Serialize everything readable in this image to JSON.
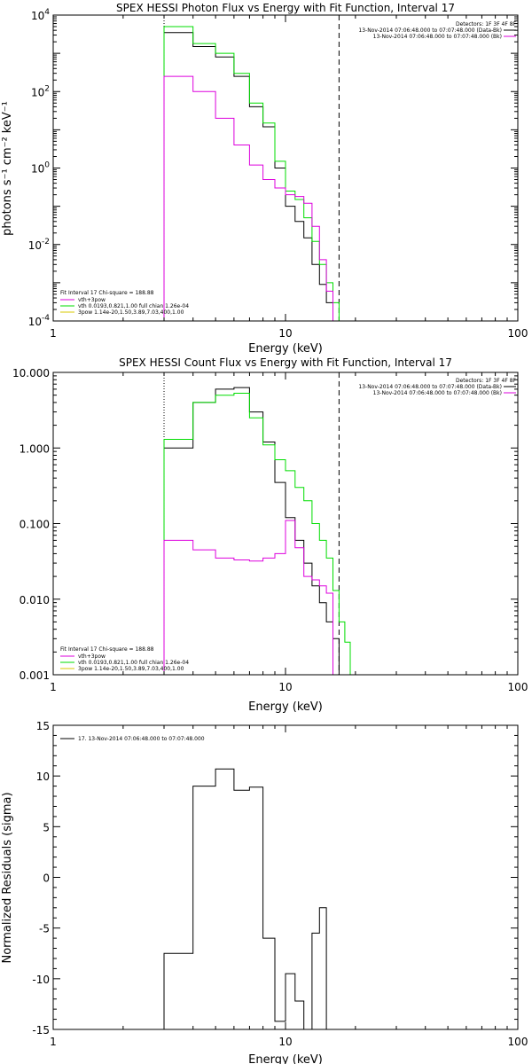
{
  "colors": {
    "data": "#000000",
    "total": "#00dd00",
    "thermal": "#dd00dd",
    "power": "#d8c800"
  },
  "chart_data": [
    {
      "type": "line",
      "title": "SPEX HESSI Photon Flux vs Energy with Fit Function, Interval 17",
      "xlabel": "Energy (keV)",
      "ylabel": "photons s⁻¹ cm⁻² keV⁻¹",
      "xscale": "log",
      "yscale": "log",
      "xlim": [
        1,
        100
      ],
      "ylim": [
        0.0001,
        10000
      ],
      "xticklabels": [
        "1",
        "10",
        "100"
      ],
      "yticklabels": [
        {
          "v": 10000,
          "base": "10",
          "exp": "4"
        },
        {
          "v": 100,
          "base": "10",
          "exp": "2"
        },
        {
          "v": 1,
          "base": "10",
          "exp": "0"
        },
        {
          "v": 0.01,
          "base": "10",
          "exp": "-2"
        },
        {
          "v": 0.0001,
          "base": "10",
          "exp": "-4"
        }
      ],
      "vlines": [
        {
          "x": 3,
          "style": "dotted"
        },
        {
          "x": 17,
          "style": "dashed"
        }
      ],
      "edges": [
        3,
        4,
        5,
        6,
        7,
        8,
        9,
        10,
        11,
        12,
        13,
        14,
        15,
        16,
        17,
        18
      ],
      "series": [
        {
          "color_key": "data",
          "values": [
            3500,
            1500,
            800,
            250,
            40,
            12,
            1,
            0.1,
            0.04,
            0.015,
            0.003,
            0.0009,
            0.0003,
            0.0001
          ]
        },
        {
          "color_key": "total",
          "values": [
            5000,
            1800,
            1000,
            300,
            50,
            15,
            1.5,
            0.25,
            0.15,
            0.05,
            0.012,
            0.003,
            0.001,
            0.0003,
            0.0001
          ]
        },
        {
          "color_key": "thermal",
          "values": [
            250,
            100,
            20,
            4,
            1.2,
            0.5,
            0.3,
            0.2,
            0.18,
            0.12,
            0.03,
            0.004,
            0.0006
          ]
        }
      ],
      "legend_header": "Detectors: 1F 3F 4F 8F",
      "legend": [
        {
          "label": "13-Nov-2014 07:06:48.000 to 07:07:48.000 (Data-Bk)",
          "color_key": "data"
        },
        {
          "label": "13-Nov-2014 07:06:48.000 to 07:07:48.000 (Bk)",
          "color_key": "thermal"
        }
      ],
      "fit_header": "Fit Interval 17    Chi-square = 188.88",
      "fit_legend": [
        {
          "label": "vth+3pow",
          "color_key": "thermal"
        },
        {
          "label": "vth 0.0193,0.821,1.00  full chian 1.26e-04",
          "color_key": "total"
        },
        {
          "label": "3pow 1.14e-20,1.50,3.89,7.03,400,1.00",
          "color_key": "power"
        }
      ]
    },
    {
      "type": "line",
      "title": "SPEX HESSI Count Flux vs Energy with Fit Function, Interval 17",
      "xlabel": "Energy (keV)",
      "ylabel": "",
      "xscale": "log",
      "yscale": "log",
      "xlim": [
        1,
        100
      ],
      "ylim": [
        0.001,
        10
      ],
      "xticklabels": [
        "1",
        "10",
        "100"
      ],
      "yticklabels": [
        {
          "v": 10,
          "text": "10.000"
        },
        {
          "v": 1,
          "text": "1.000"
        },
        {
          "v": 0.1,
          "text": "0.100"
        },
        {
          "v": 0.01,
          "text": "0.010"
        },
        {
          "v": 0.001,
          "text": "0.001"
        }
      ],
      "vlines": [
        {
          "x": 3,
          "style": "dotted"
        },
        {
          "x": 17,
          "style": "dashed"
        }
      ],
      "edges": [
        3,
        4,
        5,
        6,
        7,
        8,
        9,
        10,
        11,
        12,
        13,
        14,
        15,
        16,
        17,
        18,
        19,
        20
      ],
      "series": [
        {
          "color_key": "data",
          "values": [
            1,
            4,
            6,
            6.3,
            3,
            1.2,
            0.35,
            0.12,
            0.06,
            0.03,
            0.015,
            0.009,
            0.005,
            0.003
          ]
        },
        {
          "color_key": "total",
          "values": [
            1.3,
            4,
            5,
            5.3,
            2.5,
            1.1,
            0.7,
            0.5,
            0.3,
            0.2,
            0.1,
            0.06,
            0.035,
            0.013,
            0.005,
            0.0027,
            0.001
          ]
        },
        {
          "color_key": "thermal",
          "values": [
            0.06,
            0.045,
            0.035,
            0.033,
            0.032,
            0.035,
            0.04,
            0.11,
            0.048,
            0.02,
            0.018,
            0.015,
            0.012,
            0.001
          ]
        }
      ],
      "legend_header": "Detectors: 1F 3F 4F 8F",
      "legend": [
        {
          "label": "13-Nov-2014 07:06:48.000 to 07:07:48.000 (Data-Bk)",
          "color_key": "data"
        },
        {
          "label": "13-Nov-2014 07:06:48.000 to 07:07:48.000 (Bk)",
          "color_key": "thermal"
        }
      ],
      "fit_header": "Fit Interval 17    Chi-square = 188.88",
      "fit_legend": [
        {
          "label": "vth+3pow",
          "color_key": "thermal"
        },
        {
          "label": "vth 0.0193,0.821,1.00  full chian 1.26e-04",
          "color_key": "total"
        },
        {
          "label": "3pow 1.14e-20,1.50,3.89,7.03,400,1.00",
          "color_key": "power"
        }
      ]
    },
    {
      "type": "line",
      "title": "",
      "xlabel": "Energy (keV)",
      "ylabel": "Normalized Residuals (sigma)",
      "xscale": "log",
      "yscale": "linear",
      "xlim": [
        1,
        100
      ],
      "ylim": [
        -15,
        15
      ],
      "xticklabels": [
        "1",
        "10",
        "100"
      ],
      "yticklabels": [
        {
          "v": 15,
          "text": "15"
        },
        {
          "v": 10,
          "text": "10"
        },
        {
          "v": 5,
          "text": "5"
        },
        {
          "v": 0,
          "text": "0"
        },
        {
          "v": -5,
          "text": "-5"
        },
        {
          "v": -10,
          "text": "-10"
        },
        {
          "v": -15,
          "text": "-15"
        }
      ],
      "vlines": [],
      "edges": [
        3,
        4,
        5,
        6,
        7,
        8,
        9,
        10,
        11,
        12,
        13,
        14,
        15,
        16,
        17
      ],
      "series": [
        {
          "color_key": "data",
          "from_bottom": true,
          "values": [
            -7.5,
            9,
            10.7,
            8.6,
            8.9,
            -6,
            -14.2,
            -9.5,
            -12.2,
            -15,
            -5.5,
            -3
          ]
        }
      ],
      "legend_header": "",
      "legend": [
        {
          "label": "17. 13-Nov-2014 07:06:48.000 to 07:07:48.000",
          "color_key": "data"
        }
      ],
      "fit_header": "",
      "fit_legend": []
    }
  ]
}
